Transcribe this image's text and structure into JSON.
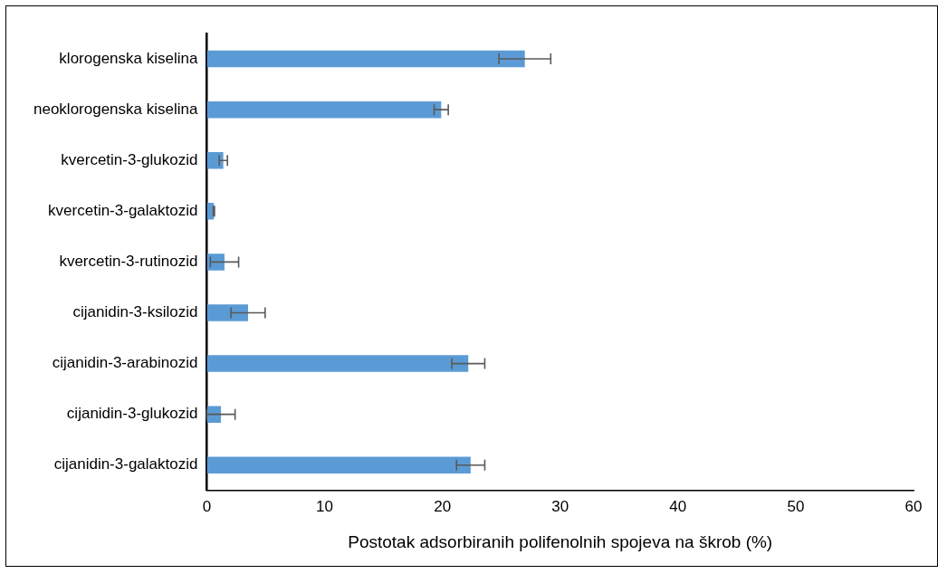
{
  "chart_data": {
    "type": "bar",
    "orientation": "horizontal",
    "xlabel": "Postotak adsorbiranih polifenolnih spojeva na škrob (%)",
    "categories": [
      "klorogenska kiselina",
      "neoklorogenska kiselina",
      "kvercetin-3-glukozid",
      "kvercetin-3-galaktozid",
      "kvercetin-3-rutinozid",
      "cijanidin-3-ksilozid",
      "cijanidin-3-arabinozid",
      "cijanidin-3-glukozid",
      "cijanidin-3-galaktozid"
    ],
    "values": [
      27.0,
      19.9,
      1.4,
      0.6,
      1.5,
      3.5,
      22.2,
      1.2,
      22.4
    ],
    "errors": [
      2.2,
      0.6,
      0.35,
      0.05,
      1.2,
      1.45,
      1.4,
      1.2,
      1.2
    ],
    "color": "#5b9bd5",
    "xlim": [
      0,
      60
    ],
    "xticks": [
      0,
      10,
      20,
      30,
      40,
      50,
      60
    ],
    "grid": false,
    "legend": false
  }
}
